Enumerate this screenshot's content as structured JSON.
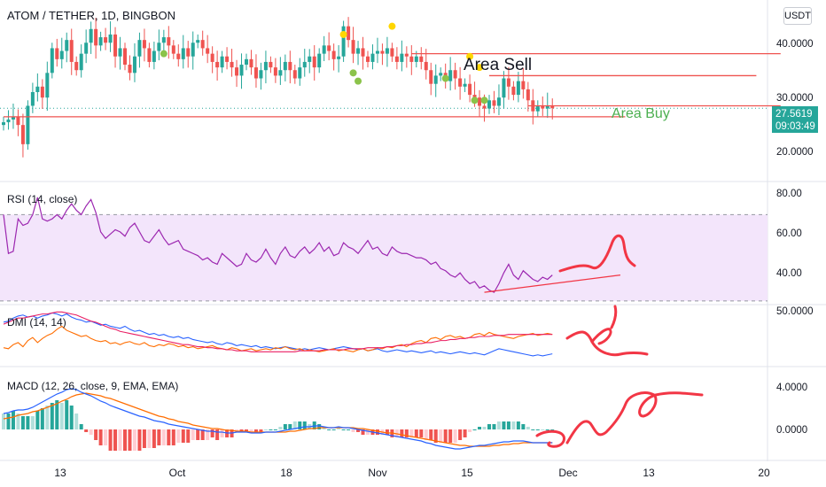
{
  "header": {
    "title": "ATOM / TETHER, 1D, BINGBON",
    "currency_button": "USDT"
  },
  "colors": {
    "up": "#26a69a",
    "down": "#ef5350",
    "rsi_line": "#9c27b0",
    "rsi_band": "#f3e5fb",
    "dmi_plus": "#2962ff",
    "dmi_minus": "#ff6d00",
    "adx": "#e91e63",
    "macd_line": "#2962ff",
    "signal_line": "#ff6d00",
    "drawing": "#f23645",
    "area_buy": "#4caf50"
  },
  "price_panel": {
    "y_ticks": [
      "40.0000",
      "30.0000",
      "20.0000"
    ],
    "last_price": "27.5619",
    "countdown": "09:03:49",
    "annotation_sell": "Area Sell",
    "annotation_buy": "Area Buy"
  },
  "indicators": {
    "rsi": {
      "title": "RSI (14, close)",
      "y_ticks": [
        "80.00",
        "60.00",
        "40.00"
      ]
    },
    "dmi": {
      "title": "DMI (14, 14)",
      "y_ticks": [
        "50.0000"
      ]
    },
    "macd": {
      "title": "MACD (12, 26, close, 9, EMA, EMA)",
      "y_ticks": [
        "4.0000",
        "0.0000"
      ]
    }
  },
  "x_axis": {
    "ticks": [
      "13",
      "Oct",
      "18",
      "Nov",
      "15",
      "Dec",
      "13",
      "20"
    ]
  },
  "chart_data": [
    {
      "type": "candlestick",
      "title": "ATOM / TETHER, 1D, BINGBON",
      "ylim": [
        15,
        46
      ],
      "closes": [
        25.0,
        25.5,
        26.0,
        24.5,
        21.0,
        28.0,
        30.5,
        31.5,
        29.5,
        34.0,
        38.5,
        36.5,
        38.0,
        40.0,
        36.0,
        34.5,
        37.5,
        39.5,
        42.0,
        39.0,
        40.5,
        39.5,
        41.0,
        37.0,
        38.5,
        35.5,
        34.0,
        37.0,
        40.0,
        38.5,
        36.0,
        38.0,
        39.5,
        40.5,
        39.0,
        37.5,
        36.5,
        38.5,
        37.0,
        39.5,
        40.0,
        38.5,
        37.5,
        36.0,
        35.0,
        37.0,
        36.0,
        35.0,
        33.5,
        35.5,
        36.5,
        35.0,
        33.0,
        34.5,
        36.0,
        35.0,
        33.5,
        34.5,
        36.0,
        34.5,
        33.0,
        35.0,
        36.0,
        37.0,
        35.0,
        37.5,
        39.0,
        38.0,
        36.5,
        37.0,
        42.5,
        40.0,
        37.5,
        38.5,
        37.0,
        36.0,
        37.5,
        38.0,
        37.5,
        38.5,
        37.0,
        36.0,
        37.5,
        37.0,
        36.0,
        37.0,
        36.0,
        34.5,
        32.0,
        33.5,
        34.0,
        32.5,
        34.5,
        33.0,
        31.5,
        32.0,
        30.0,
        29.5,
        28.0,
        27.5,
        29.0,
        28.0,
        29.5,
        33.0,
        31.5,
        30.0,
        32.5,
        31.0,
        29.0,
        27.0,
        28.0,
        27.5,
        28.0,
        27.56
      ],
      "dots_yellow": [
        [
          70,
          41.0
        ],
        [
          80,
          42.5
        ],
        [
          96,
          37.0
        ],
        [
          98,
          35.0
        ]
      ],
      "dots_green": [
        [
          33,
          37.5
        ],
        [
          72,
          34.0
        ],
        [
          73,
          32.5
        ],
        [
          91,
          33.0
        ],
        [
          97,
          29.0
        ],
        [
          99,
          29.0
        ]
      ],
      "lines": [
        {
          "from": [
            84,
            37.5
          ],
          "to": [
            160,
            37.5
          ]
        },
        {
          "from": [
            100,
            33.5
          ],
          "to": [
            155,
            33.5
          ]
        },
        {
          "from": [
            108,
            28.0
          ],
          "to": [
            160,
            28.0
          ]
        },
        {
          "from": [
            0,
            26.0
          ],
          "to": [
            128,
            26.0
          ]
        }
      ]
    },
    {
      "type": "line",
      "title": "RSI (14, close)",
      "ylim": [
        30,
        80
      ],
      "band": [
        30,
        70
      ],
      "series": [
        {
          "values": [
            70,
            52,
            53,
            68,
            65,
            66,
            70,
            78,
            68,
            67,
            68,
            70,
            68,
            72,
            75,
            72,
            70,
            74,
            77,
            71,
            62,
            59,
            61,
            63,
            62,
            60,
            64,
            66,
            62,
            58,
            57,
            60,
            63,
            59,
            56,
            57,
            58,
            54,
            53,
            52,
            51,
            49,
            50,
            48,
            47,
            52,
            50,
            48,
            46,
            47,
            52,
            49,
            48,
            50,
            54,
            50,
            47,
            52,
            55,
            51,
            50,
            53,
            55,
            52,
            54,
            57,
            53,
            55,
            51,
            52,
            57,
            55,
            54,
            52,
            55,
            58,
            54,
            55,
            52,
            51,
            55,
            53,
            52,
            52,
            51,
            50,
            50,
            49,
            47,
            48,
            45,
            44,
            42,
            41,
            43,
            40,
            38,
            39,
            36,
            37,
            35,
            34,
            38,
            43,
            47,
            42,
            40,
            44,
            42,
            40,
            39,
            41,
            40,
            42
          ]
        }
      ],
      "trendline": {
        "from": [
          99,
          34
        ],
        "to": [
          127,
          42
        ]
      }
    },
    {
      "type": "line",
      "title": "DMI (14, 14)",
      "ylim": [
        0,
        52
      ],
      "series": [
        {
          "values": [
            40,
            41,
            44,
            46,
            47,
            45,
            46,
            44,
            46,
            47,
            49,
            48,
            46,
            48,
            45,
            43,
            42,
            40,
            41,
            39,
            37,
            38,
            36,
            35,
            34,
            36,
            33,
            31,
            32,
            30,
            28,
            29,
            27,
            28,
            26,
            25,
            26,
            24,
            25,
            23,
            22,
            21,
            20,
            21,
            19,
            18,
            20,
            19,
            17,
            18,
            17,
            16,
            17,
            15,
            16,
            15,
            14,
            15,
            16,
            15,
            14,
            13,
            14,
            13,
            14,
            15,
            14,
            13,
            14,
            15,
            16,
            15,
            14,
            13,
            14,
            12,
            13,
            14,
            12,
            11,
            12,
            13,
            12,
            11,
            12,
            11,
            10,
            11,
            12,
            10,
            11,
            10,
            9,
            10,
            11,
            10,
            9,
            10,
            9,
            8,
            10,
            12,
            14,
            13,
            12,
            11,
            10,
            9,
            8,
            7,
            8,
            7,
            8,
            9
          ]
        },
        {
          "values": [
            15,
            14,
            18,
            20,
            16,
            22,
            25,
            20,
            24,
            27,
            29,
            33,
            36,
            32,
            30,
            28,
            26,
            27,
            24,
            22,
            21,
            22,
            19,
            20,
            18,
            20,
            21,
            19,
            18,
            20,
            17,
            16,
            18,
            17,
            19,
            18,
            16,
            17,
            15,
            16,
            14,
            15,
            16,
            17,
            15,
            14,
            13,
            15,
            14,
            12,
            13,
            14,
            12,
            13,
            14,
            13,
            15,
            14,
            16,
            14,
            13,
            14,
            12,
            13,
            12,
            11,
            12,
            13,
            14,
            12,
            13,
            12,
            11,
            13,
            14,
            12,
            13,
            15,
            14,
            16,
            15,
            17,
            18,
            16,
            19,
            21,
            22,
            20,
            24,
            25,
            23,
            26,
            27,
            25,
            26,
            24,
            25,
            28,
            29,
            27,
            30,
            28,
            27,
            26,
            25,
            24,
            26,
            27,
            28,
            29,
            27,
            28,
            29,
            28
          ]
        },
        {
          "values": [
            38,
            40,
            42,
            44,
            44,
            45,
            46,
            47,
            48,
            48,
            49,
            50,
            50,
            49,
            48,
            47,
            45,
            43,
            41,
            40,
            38,
            36,
            34,
            33,
            31,
            30,
            29,
            28,
            27,
            26,
            25,
            24,
            23,
            22,
            21,
            20,
            19,
            18,
            18,
            17,
            16,
            16,
            15,
            15,
            14,
            14,
            13,
            13,
            12,
            12,
            12,
            11,
            11,
            11,
            11,
            11,
            11,
            11,
            11,
            11,
            11,
            12,
            12,
            12,
            12,
            12,
            13,
            13,
            13,
            13,
            13,
            14,
            14,
            14,
            14,
            15,
            15,
            15,
            15,
            16,
            16,
            17,
            17,
            18,
            18,
            19,
            19,
            20,
            20,
            21,
            22,
            22,
            23,
            23,
            24,
            24,
            25,
            25,
            26,
            26,
            26,
            27,
            27,
            27,
            28,
            28,
            28,
            28,
            28,
            28,
            28,
            28,
            28,
            28
          ]
        }
      ]
    },
    {
      "type": "line",
      "title": "MACD (12, 26, close, 9, EMA, EMA)",
      "ylim": [
        -3,
        5
      ],
      "series": [
        {
          "values": [
            1.8,
            1.9,
            2.1,
            2.2,
            2.2,
            2.3,
            2.5,
            2.8,
            3.1,
            3.4,
            3.7,
            4.0,
            4.2,
            4.5,
            4.6,
            4.5,
            4.2,
            4.0,
            3.8,
            3.5,
            3.2,
            3.0,
            2.7,
            2.5,
            2.3,
            2.1,
            1.9,
            1.7,
            1.5,
            1.4,
            1.2,
            1.0,
            0.9,
            0.8,
            0.6,
            0.5,
            0.4,
            0.3,
            0.2,
            0.1,
            0.0,
            -0.1,
            -0.2,
            -0.2,
            -0.3,
            -0.3,
            -0.4,
            -0.4,
            -0.3,
            -0.3,
            -0.3,
            -0.4,
            -0.4,
            -0.4,
            -0.3,
            -0.3,
            -0.3,
            -0.2,
            -0.1,
            0.0,
            0.1,
            0.2,
            0.3,
            0.3,
            0.4,
            0.4,
            0.3,
            0.2,
            0.2,
            0.3,
            0.2,
            0.2,
            0.1,
            0.0,
            -0.1,
            -0.2,
            -0.3,
            -0.4,
            -0.5,
            -0.6,
            -0.7,
            -0.8,
            -0.9,
            -1.0,
            -1.1,
            -1.2,
            -1.3,
            -1.5,
            -1.6,
            -1.8,
            -1.9,
            -2.0,
            -2.1,
            -2.2,
            -2.2,
            -2.1,
            -2.0,
            -1.9,
            -1.8,
            -1.8,
            -1.7,
            -1.6,
            -1.5,
            -1.4,
            -1.4,
            -1.3,
            -1.3,
            -1.3,
            -1.4,
            -1.5,
            -1.5,
            -1.5,
            -1.5,
            -1.5
          ]
        },
        {
          "values": [
            1.2,
            1.3,
            1.4,
            1.6,
            1.7,
            1.8,
            2.0,
            2.1,
            2.3,
            2.5,
            2.7,
            2.9,
            3.2,
            3.4,
            3.7,
            3.9,
            4.0,
            4.1,
            4.0,
            3.9,
            3.8,
            3.6,
            3.5,
            3.3,
            3.1,
            2.9,
            2.7,
            2.5,
            2.3,
            2.1,
            1.9,
            1.7,
            1.5,
            1.4,
            1.2,
            1.1,
            0.9,
            0.8,
            0.7,
            0.5,
            0.4,
            0.3,
            0.2,
            0.1,
            0.1,
            0.0,
            -0.1,
            -0.1,
            -0.2,
            -0.2,
            -0.2,
            -0.3,
            -0.3,
            -0.3,
            -0.3,
            -0.3,
            -0.3,
            -0.3,
            -0.3,
            -0.2,
            -0.2,
            -0.1,
            0.0,
            0.1,
            0.1,
            0.2,
            0.2,
            0.2,
            0.2,
            0.2,
            0.2,
            0.2,
            0.2,
            0.1,
            0.1,
            0.0,
            -0.1,
            -0.2,
            -0.3,
            -0.4,
            -0.4,
            -0.5,
            -0.6,
            -0.7,
            -0.8,
            -0.9,
            -1.0,
            -1.1,
            -1.2,
            -1.3,
            -1.4,
            -1.5,
            -1.6,
            -1.7,
            -1.8,
            -1.8,
            -1.9,
            -1.9,
            -1.9,
            -1.9,
            -1.9,
            -1.8,
            -1.8,
            -1.7,
            -1.7,
            -1.6,
            -1.6,
            -1.5,
            -1.5,
            -1.5,
            -1.5,
            -1.5,
            -1.5,
            -1.5
          ]
        }
      ]
    }
  ]
}
